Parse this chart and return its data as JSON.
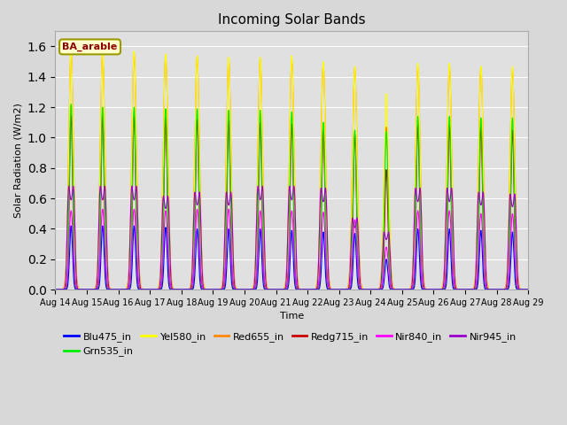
{
  "title": "Incoming Solar Bands",
  "xlabel": "Time",
  "ylabel": "Solar Radiation (W/m2)",
  "annotation": "BA_arable",
  "ylim": [
    0,
    1.7
  ],
  "n_days": 15,
  "date_labels": [
    "Aug 14",
    "Aug 15",
    "Aug 16",
    "Aug 17",
    "Aug 18",
    "Aug 19",
    "Aug 20",
    "Aug 21",
    "Aug 22",
    "Aug 23",
    "Aug 24",
    "Aug 25",
    "Aug 26",
    "Aug 27",
    "Aug 28",
    "Aug 29"
  ],
  "colors": {
    "Blu475_in": "#0000ff",
    "Grn535_in": "#00ee00",
    "Yel580_in": "#ffff00",
    "Red655_in": "#ff8800",
    "Redg715_in": "#cc0000",
    "Nir840_in": "#ff00ff",
    "Nir945_in": "#9900cc"
  },
  "background_color": "#e0e0e0",
  "grid_color": "#ffffff",
  "peaks": [
    {
      "Yel580": 1.58,
      "Red655": 1.57,
      "Grn535": 1.22,
      "Blu475": 0.42,
      "Redg715": 1.15,
      "Nir840": 0.52,
      "Nir945": 0.52
    },
    {
      "Yel580": 1.57,
      "Red655": 1.55,
      "Grn535": 1.2,
      "Blu475": 0.42,
      "Redg715": 1.14,
      "Nir840": 0.53,
      "Nir945": 0.52
    },
    {
      "Yel580": 1.57,
      "Red655": 1.55,
      "Grn535": 1.2,
      "Blu475": 0.42,
      "Redg715": 1.14,
      "Nir840": 0.53,
      "Nir945": 0.52
    },
    {
      "Yel580": 1.55,
      "Red655": 1.54,
      "Grn535": 1.19,
      "Blu475": 0.41,
      "Redg715": 1.13,
      "Nir840": 0.52,
      "Nir945": 0.47
    },
    {
      "Yel580": 1.54,
      "Red655": 1.53,
      "Grn535": 1.19,
      "Blu475": 0.4,
      "Redg715": 1.12,
      "Nir840": 0.53,
      "Nir945": 0.49
    },
    {
      "Yel580": 1.53,
      "Red655": 1.52,
      "Grn535": 1.18,
      "Blu475": 0.4,
      "Redg715": 1.11,
      "Nir840": 0.53,
      "Nir945": 0.49
    },
    {
      "Yel580": 1.53,
      "Red655": 1.52,
      "Grn535": 1.18,
      "Blu475": 0.4,
      "Redg715": 1.1,
      "Nir840": 0.52,
      "Nir945": 0.52
    },
    {
      "Yel580": 1.54,
      "Red655": 1.51,
      "Grn535": 1.17,
      "Blu475": 0.39,
      "Redg715": 1.09,
      "Nir840": 0.52,
      "Nir945": 0.52
    },
    {
      "Yel580": 1.5,
      "Red655": 1.49,
      "Grn535": 1.1,
      "Blu475": 0.38,
      "Redg715": 1.05,
      "Nir840": 0.51,
      "Nir945": 0.51
    },
    {
      "Yel580": 1.47,
      "Red655": 1.46,
      "Grn535": 1.05,
      "Blu475": 0.37,
      "Redg715": 1.02,
      "Nir840": 0.46,
      "Nir945": 0.36
    },
    {
      "Yel580": 1.29,
      "Red655": 1.07,
      "Grn535": 1.04,
      "Blu475": 0.2,
      "Redg715": 0.79,
      "Nir840": 0.28,
      "Nir945": 0.29
    },
    {
      "Yel580": 1.49,
      "Red655": 1.47,
      "Grn535": 1.14,
      "Blu475": 0.4,
      "Redg715": 1.08,
      "Nir840": 0.52,
      "Nir945": 0.51
    },
    {
      "Yel580": 1.49,
      "Red655": 1.47,
      "Grn535": 1.14,
      "Blu475": 0.4,
      "Redg715": 1.08,
      "Nir840": 0.52,
      "Nir945": 0.51
    },
    {
      "Yel580": 1.47,
      "Red655": 1.46,
      "Grn535": 1.13,
      "Blu475": 0.39,
      "Redg715": 1.07,
      "Nir840": 0.5,
      "Nir945": 0.49
    },
    {
      "Yel580": 1.47,
      "Red655": 1.45,
      "Grn535": 1.13,
      "Blu475": 0.38,
      "Redg715": 1.05,
      "Nir840": 0.5,
      "Nir945": 0.48
    }
  ],
  "widths": {
    "Yel580": 0.07,
    "Red655": 0.075,
    "Grn535": 0.055,
    "Blu475": 0.045,
    "Redg715": 0.05,
    "Nir840": 0.065,
    "Nir945_main": 0.065,
    "Nir945_side": 0.04
  },
  "plot_order": [
    "Red655_in",
    "Yel580_in",
    "Redg715_in",
    "Grn535_in",
    "Nir840_in",
    "Nir945_in",
    "Blu475_in"
  ],
  "legend_order": [
    "Blu475_in",
    "Grn535_in",
    "Yel580_in",
    "Red655_in",
    "Redg715_in",
    "Nir840_in",
    "Nir945_in"
  ]
}
